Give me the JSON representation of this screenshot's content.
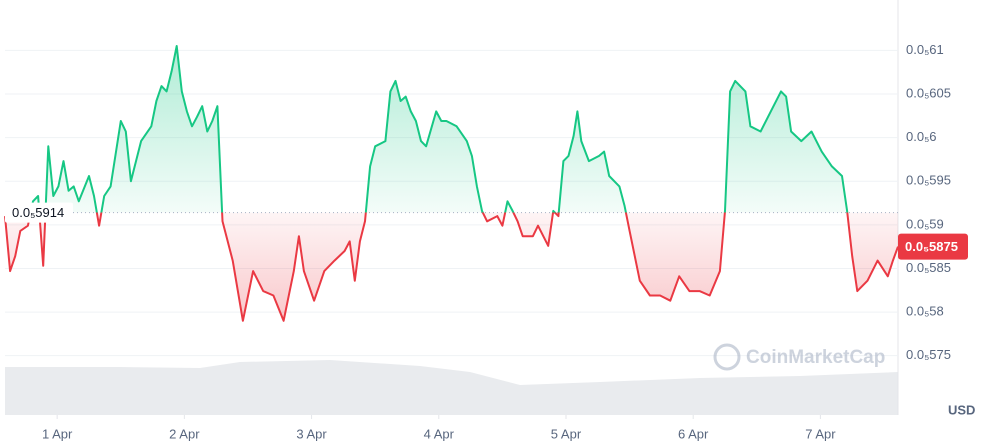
{
  "chart_data": {
    "type": "line",
    "x": [
      0.59,
      0.63,
      0.67,
      0.71,
      0.77,
      0.81,
      0.85,
      0.89,
      0.93,
      0.97,
      1.01,
      1.05,
      1.09,
      1.13,
      1.17,
      1.25,
      1.29,
      1.33,
      1.37,
      1.42,
      1.5,
      1.54,
      1.58,
      1.66,
      1.74,
      1.78,
      1.82,
      1.86,
      1.9,
      1.94,
      1.98,
      2.02,
      2.06,
      2.1,
      2.14,
      2.18,
      2.22,
      2.26,
      2.3,
      2.38,
      2.46,
      2.54,
      2.62,
      2.7,
      2.78,
      2.86,
      2.9,
      2.94,
      3.02,
      3.1,
      3.18,
      3.26,
      3.3,
      3.34,
      3.38,
      3.42,
      3.46,
      3.5,
      3.58,
      3.62,
      3.66,
      3.7,
      3.74,
      3.78,
      3.82,
      3.86,
      3.9,
      3.98,
      4.02,
      4.06,
      4.14,
      4.22,
      4.26,
      4.3,
      4.34,
      4.38,
      4.46,
      4.5,
      4.54,
      4.58,
      4.62,
      4.66,
      4.74,
      4.78,
      4.86,
      4.9,
      4.94,
      4.98,
      5.02,
      5.06,
      5.09,
      5.12,
      5.18,
      5.26,
      5.3,
      5.34,
      5.42,
      5.46,
      5.5,
      5.58,
      5.66,
      5.74,
      5.82,
      5.89,
      5.97,
      6.05,
      6.13,
      6.21,
      6.25,
      6.29,
      6.33,
      6.41,
      6.45,
      6.53,
      6.61,
      6.69,
      6.73,
      6.77,
      6.85,
      6.93,
      7.01,
      7.09,
      7.17,
      7.21,
      7.25,
      7.29,
      7.37,
      7.45,
      7.53,
      7.57,
      7.61
    ],
    "values": [
      5.91e-06,
      5.847e-06,
      5.864e-06,
      5.893e-06,
      5.899e-06,
      5.927e-06,
      5.933e-06,
      5.853e-06,
      5.99e-06,
      5.933e-06,
      5.944e-06,
      5.973e-06,
      5.939e-06,
      5.944e-06,
      5.927e-06,
      5.956e-06,
      5.933e-06,
      5.899e-06,
      5.933e-06,
      5.944e-06,
      6.019e-06,
      6.007e-06,
      5.95e-06,
      5.996e-06,
      6.013e-06,
      6.042e-06,
      6.059e-06,
      6.053e-06,
      6.076e-06,
      6.105e-06,
      6.053e-06,
      6.03e-06,
      6.013e-06,
      6.024e-06,
      6.036e-06,
      6.007e-06,
      6.019e-06,
      6.036e-06,
      5.904e-06,
      5.859e-06,
      5.79e-06,
      5.847e-06,
      5.824e-06,
      5.819e-06,
      5.79e-06,
      5.847e-06,
      5.887e-06,
      5.847e-06,
      5.813e-06,
      5.847e-06,
      5.859e-06,
      5.87e-06,
      5.881e-06,
      5.836e-06,
      5.881e-06,
      5.904e-06,
      5.967e-06,
      5.99e-06,
      5.996e-06,
      6.053e-06,
      6.065e-06,
      6.042e-06,
      6.047e-06,
      6.03e-06,
      6.019e-06,
      5.996e-06,
      5.99e-06,
      6.03e-06,
      6.019e-06,
      6.019e-06,
      6.013e-06,
      5.996e-06,
      5.979e-06,
      5.944e-06,
      5.916e-06,
      5.904e-06,
      5.91e-06,
      5.899e-06,
      5.927e-06,
      5.916e-06,
      5.904e-06,
      5.887e-06,
      5.887e-06,
      5.899e-06,
      5.876e-06,
      5.916e-06,
      5.91e-06,
      5.973e-06,
      5.979e-06,
      6.002e-06,
      6.03e-06,
      5.996e-06,
      5.973e-06,
      5.979e-06,
      5.984e-06,
      5.956e-06,
      5.944e-06,
      5.922e-06,
      5.893e-06,
      5.836e-06,
      5.819e-06,
      5.819e-06,
      5.813e-06,
      5.841e-06,
      5.824e-06,
      5.824e-06,
      5.819e-06,
      5.847e-06,
      5.916e-06,
      6.053e-06,
      6.065e-06,
      6.053e-06,
      6.013e-06,
      6.007e-06,
      6.03e-06,
      6.053e-06,
      6.047e-06,
      6.007e-06,
      5.996e-06,
      6.007e-06,
      5.984e-06,
      5.967e-06,
      5.956e-06,
      5.916e-06,
      5.864e-06,
      5.824e-06,
      5.836e-06,
      5.859e-06,
      5.841e-06,
      5.859e-06,
      5.875e-06
    ],
    "colors": {
      "above": "#16c784",
      "below": "#ea3943"
    },
    "baseline": {
      "value": 5.914e-06,
      "label": "0.0₅5914"
    },
    "last_price": {
      "value": 5.875e-06,
      "label": "0.0₅5875"
    },
    "ylim": [
      5.682e-06,
      6.152e-06
    ],
    "yticks": [
      {
        "value": 6.1e-06,
        "label": "0.0₅61"
      },
      {
        "value": 6.05e-06,
        "label": "0.0₅605"
      },
      {
        "value": 6e-06,
        "label": "0.0₅6"
      },
      {
        "value": 5.95e-06,
        "label": "0.0₅595"
      },
      {
        "value": 5.9e-06,
        "label": "0.0₅59"
      },
      {
        "value": 5.85e-06,
        "label": "0.0₅585"
      },
      {
        "value": 5.8e-06,
        "label": "0.0₅58"
      },
      {
        "value": 5.75e-06,
        "label": "0.0₅575"
      }
    ],
    "xlim": [
      0.59,
      7.61
    ],
    "xticks": [
      {
        "value": 1,
        "label": "1 Apr"
      },
      {
        "value": 2,
        "label": "2 Apr"
      },
      {
        "value": 3,
        "label": "3 Apr"
      },
      {
        "value": 4,
        "label": "4 Apr"
      },
      {
        "value": 5,
        "label": "5 Apr"
      },
      {
        "value": 6,
        "label": "6 Apr"
      },
      {
        "value": 7,
        "label": "7 Apr"
      }
    ],
    "grid": true,
    "currency": "USD",
    "watermark": "CoinMarketCap"
  }
}
